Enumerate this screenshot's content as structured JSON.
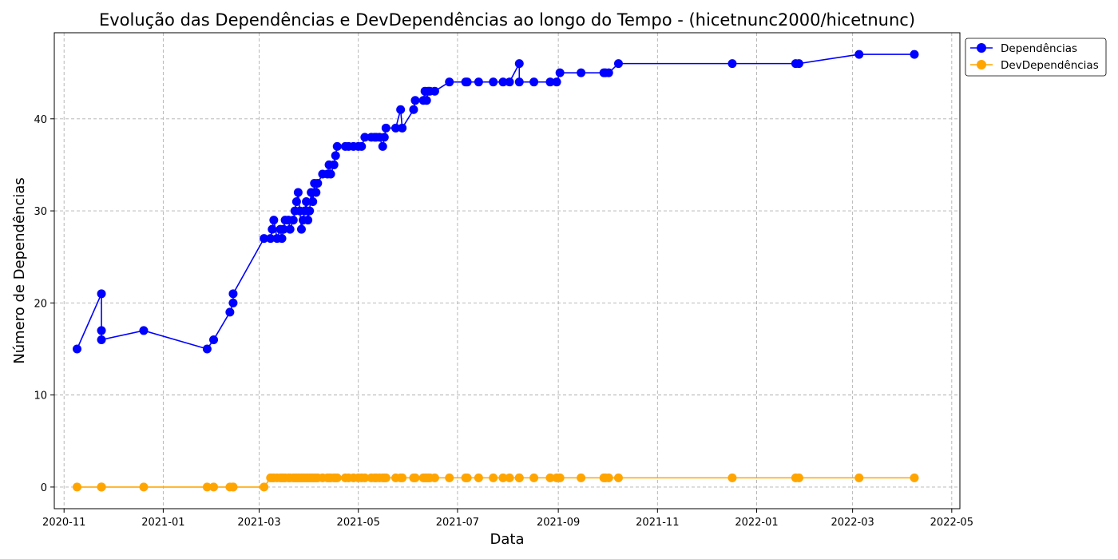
{
  "chart_data": {
    "type": "line",
    "title": "Evolução das Dependências e DevDependências ao longo do Tempo - (hicetnunc2000/hicetnunc)",
    "xlabel": "Data",
    "ylabel": "Número de Dependências",
    "x_ticks": [
      "2020-11",
      "2021-01",
      "2021-03",
      "2021-05",
      "2021-07",
      "2021-09",
      "2021-11",
      "2022-01",
      "2022-03",
      "2022-05"
    ],
    "y_ticks": [
      0,
      10,
      20,
      30,
      40
    ],
    "xlim": [
      "2020-10-26",
      "2022-05-06"
    ],
    "ylim": [
      -2.35,
      49.35
    ],
    "grid": true,
    "legend_position": "outside-top-right",
    "colors": {
      "deps": "#0000ff",
      "devdeps": "#ffa500"
    },
    "x": [
      "2020-11-09",
      "2020-11-24",
      "2020-11-24",
      "2020-11-24",
      "2020-12-20",
      "2021-01-28",
      "2021-02-01",
      "2021-02-11",
      "2021-02-13",
      "2021-02-13",
      "2021-03-04",
      "2021-03-08",
      "2021-03-09",
      "2021-03-10",
      "2021-03-12",
      "2021-03-14",
      "2021-03-15",
      "2021-03-16",
      "2021-03-17",
      "2021-03-19",
      "2021-03-20",
      "2021-03-22",
      "2021-03-23",
      "2021-03-24",
      "2021-03-25",
      "2021-03-26",
      "2021-03-27",
      "2021-03-28",
      "2021-03-29",
      "2021-03-30",
      "2021-03-31",
      "2021-04-01",
      "2021-04-02",
      "2021-04-03",
      "2021-04-04",
      "2021-04-05",
      "2021-04-06",
      "2021-04-09",
      "2021-04-12",
      "2021-04-13",
      "2021-04-14",
      "2021-04-16",
      "2021-04-17",
      "2021-04-18",
      "2021-04-23",
      "2021-04-25",
      "2021-04-28",
      "2021-05-01",
      "2021-05-03",
      "2021-05-05",
      "2021-05-09",
      "2021-05-11",
      "2021-05-12",
      "2021-05-14",
      "2021-05-16",
      "2021-05-17",
      "2021-05-18",
      "2021-05-24",
      "2021-05-27",
      "2021-05-28",
      "2021-06-04",
      "2021-06-05",
      "2021-06-10",
      "2021-06-11",
      "2021-06-12",
      "2021-06-13",
      "2021-06-14",
      "2021-06-17",
      "2021-06-26",
      "2021-07-06",
      "2021-07-07",
      "2021-07-14",
      "2021-07-23",
      "2021-07-29",
      "2021-08-02",
      "2021-08-08",
      "2021-08-08",
      "2021-08-17",
      "2021-08-27",
      "2021-08-31",
      "2021-09-02",
      "2021-09-15",
      "2021-09-29",
      "2021-09-30",
      "2021-10-02",
      "2021-10-08",
      "2021-12-17",
      "2022-01-25",
      "2022-01-27",
      "2022-03-05",
      "2022-04-08"
    ],
    "series": [
      {
        "name": "Dependências",
        "values": [
          15,
          21,
          17,
          16,
          17,
          15,
          16,
          19,
          20,
          21,
          27,
          27,
          28,
          29,
          27,
          28,
          27,
          28,
          29,
          29,
          28,
          29,
          30,
          31,
          32,
          30,
          28,
          29,
          30,
          31,
          29,
          30,
          32,
          31,
          33,
          32,
          33,
          34,
          34,
          35,
          34,
          35,
          36,
          37,
          37,
          37,
          37,
          37,
          37,
          38,
          38,
          38,
          38,
          38,
          37,
          38,
          39,
          39,
          41,
          39,
          41,
          42,
          42,
          43,
          42,
          43,
          43,
          43,
          44,
          44,
          44,
          44,
          44,
          44,
          44,
          46,
          44,
          44,
          44,
          44,
          45,
          45,
          45,
          45,
          45,
          46,
          46,
          46,
          46,
          47,
          47
        ]
      },
      {
        "name": "DevDependências",
        "values": [
          0,
          0,
          0,
          0,
          0,
          0,
          0,
          0,
          0,
          0,
          0,
          1,
          1,
          1,
          1,
          1,
          1,
          1,
          1,
          1,
          1,
          1,
          1,
          1,
          1,
          1,
          1,
          1,
          1,
          1,
          1,
          1,
          1,
          1,
          1,
          1,
          1,
          1,
          1,
          1,
          1,
          1,
          1,
          1,
          1,
          1,
          1,
          1,
          1,
          1,
          1,
          1,
          1,
          1,
          1,
          1,
          1,
          1,
          1,
          1,
          1,
          1,
          1,
          1,
          1,
          1,
          1,
          1,
          1,
          1,
          1,
          1,
          1,
          1,
          1,
          1,
          1,
          1,
          1,
          1,
          1,
          1,
          1,
          1,
          1,
          1,
          1,
          1,
          1,
          1,
          1
        ]
      }
    ]
  }
}
